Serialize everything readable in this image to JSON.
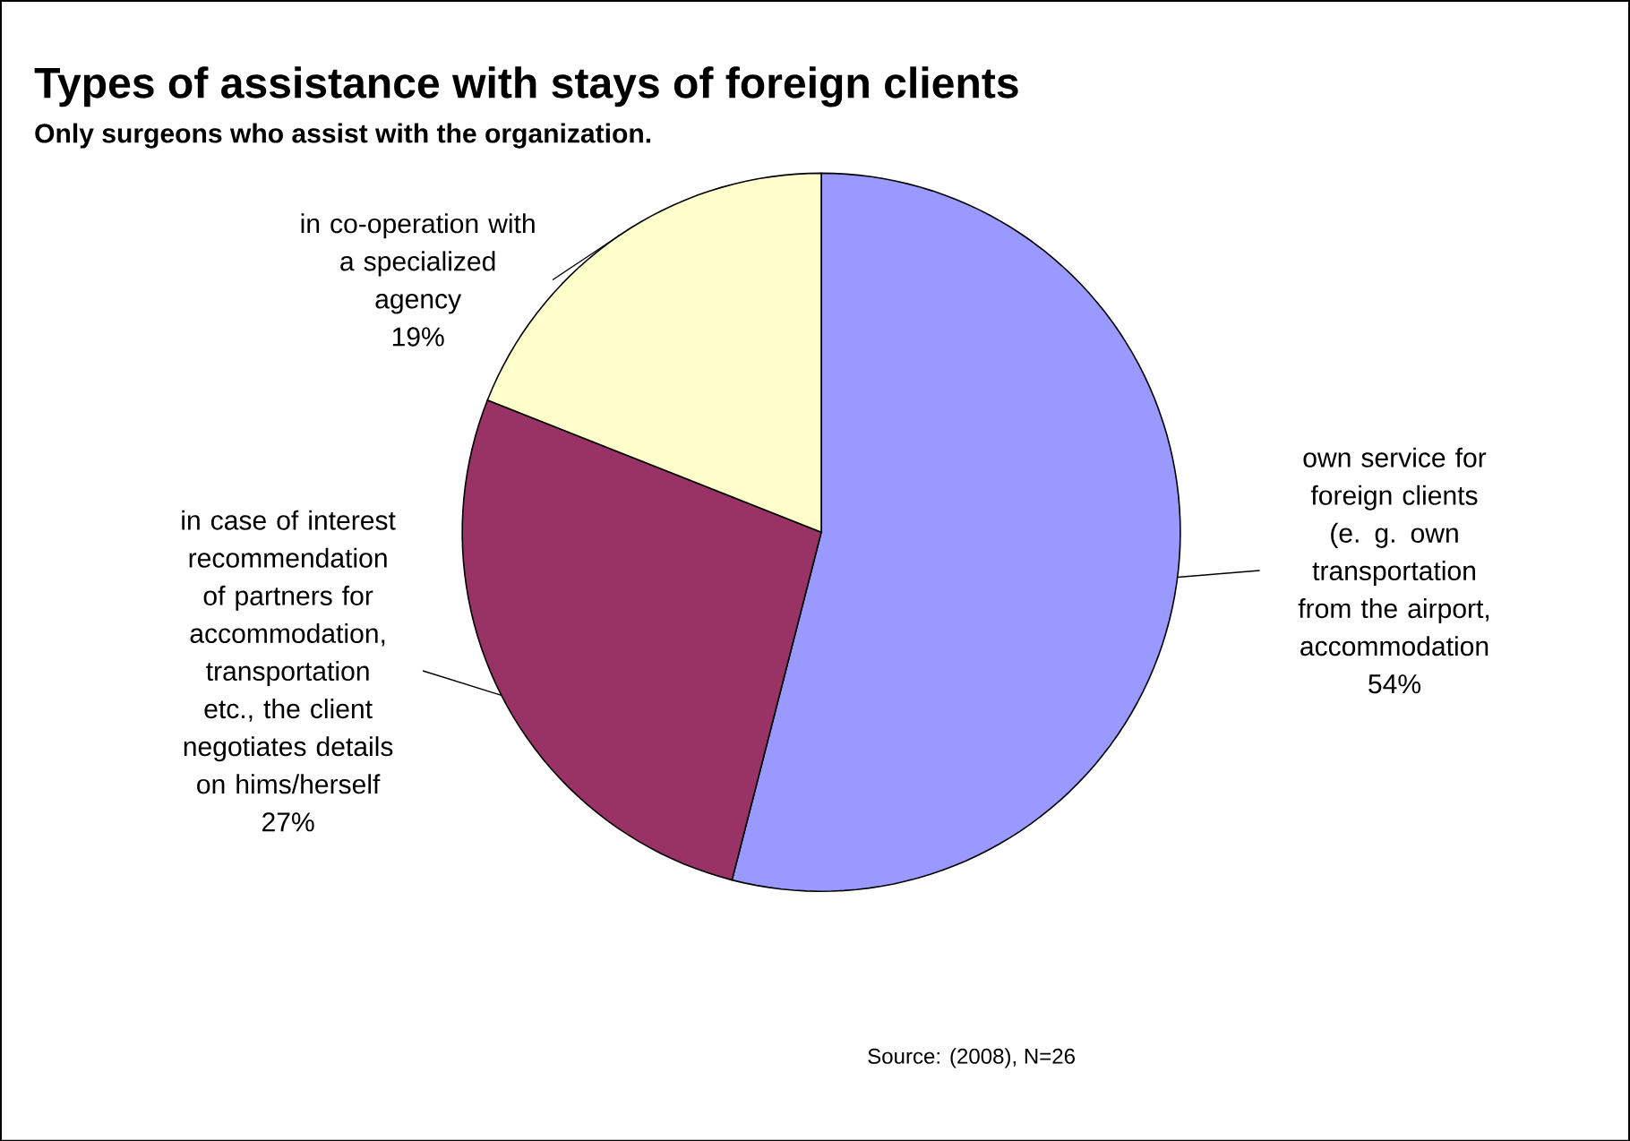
{
  "chart_data": {
    "type": "pie",
    "title": "Types of assistance with stays of foreign clients",
    "subtitle": "Only surgeons who assist with the organization.",
    "categories": [
      "own service for foreign clients (e. g. own transportation from the airport, accommodation",
      "in case of interest recommendation of partners for accommodation, transportation etc., the client negotiates details on hims/herself",
      "in co-operation with a specialized agency"
    ],
    "values": [
      54,
      27,
      19
    ],
    "colors": [
      "#9999ff",
      "#993366",
      "#ffffcc"
    ],
    "value_labels": [
      "54%",
      "27%",
      "19%"
    ],
    "annotations": [
      "Source: (2008), N=26"
    ]
  }
}
